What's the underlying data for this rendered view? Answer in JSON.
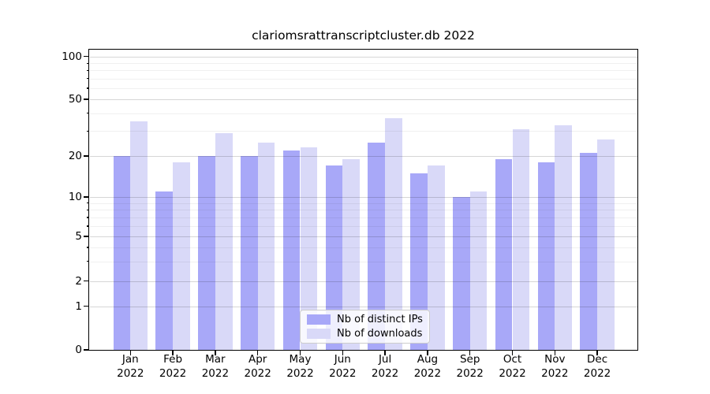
{
  "chart_data": {
    "type": "bar",
    "title": "clariomsrattranscriptcluster.db 2022",
    "year": "2022",
    "months": [
      "Jan",
      "Feb",
      "Mar",
      "Apr",
      "May",
      "Jun",
      "Jul",
      "Aug",
      "Sep",
      "Oct",
      "Nov",
      "Dec"
    ],
    "categories": [
      "Jan 2022",
      "Feb 2022",
      "Mar 2022",
      "Apr 2022",
      "May 2022",
      "Jun 2022",
      "Jul 2022",
      "Aug 2022",
      "Sep 2022",
      "Oct 2022",
      "Nov 2022",
      "Dec 2022"
    ],
    "series": [
      {
        "name": "Nb of distinct IPs",
        "color": "#a8a8f8",
        "values": [
          20,
          11,
          20,
          20,
          22,
          17,
          25,
          15,
          10,
          19,
          18,
          21
        ]
      },
      {
        "name": "Nb of downloads",
        "color": "#d9d9f8",
        "values": [
          35,
          18,
          29,
          25,
          23,
          19,
          37,
          17,
          11,
          31,
          33,
          26
        ]
      }
    ],
    "yscale": "log-like",
    "ylim": [
      0,
      100
    ],
    "yticks": [
      0,
      1,
      2,
      5,
      10,
      20,
      50,
      100
    ],
    "yticks_minor": [
      3,
      4,
      6,
      7,
      8,
      9,
      30,
      40,
      60,
      70,
      80,
      90
    ],
    "grid": "on",
    "legend_position": "bottom-center"
  }
}
